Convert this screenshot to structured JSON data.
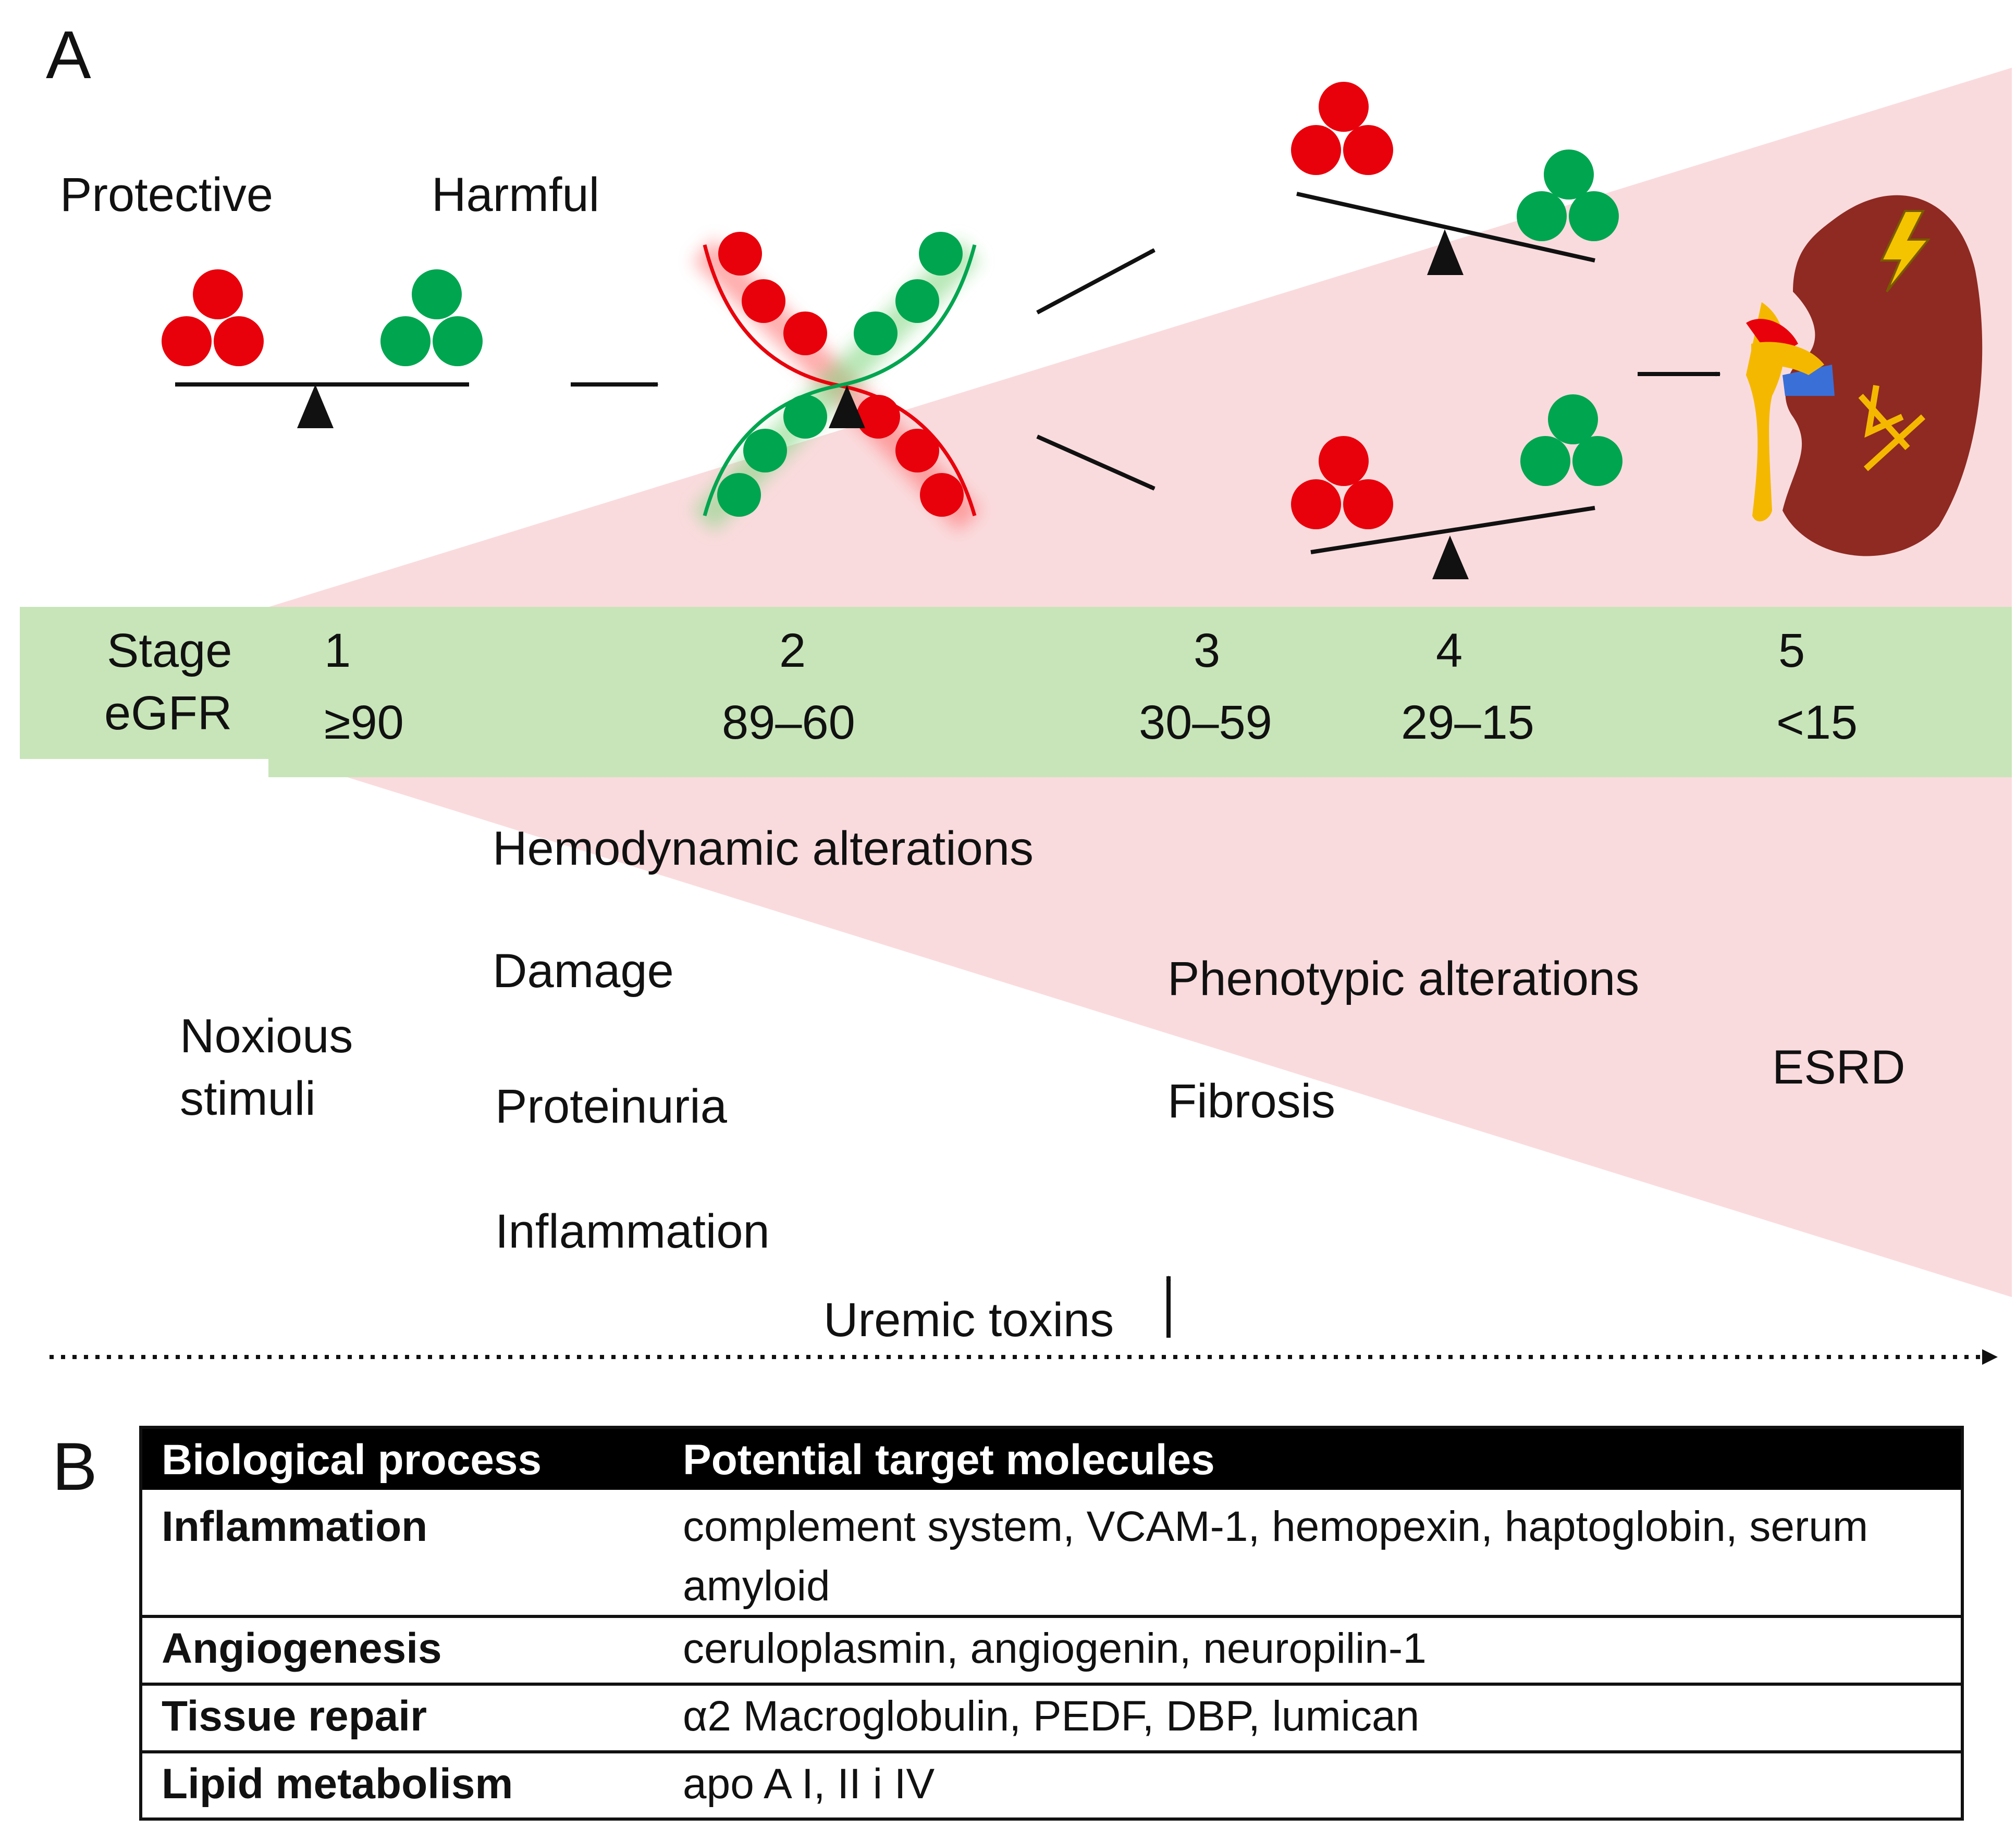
{
  "panel_labels": {
    "a": "A",
    "b": "B"
  },
  "colors": {
    "protective": "#e8000b",
    "harmful": "#00a550",
    "wedge": "#fadbdd",
    "stage_band": "#c8e5b9",
    "kidney": "#8e2a22",
    "table_header_bg": "#000000"
  },
  "balance_labels": {
    "protective": "Protective",
    "harmful": "Harmful"
  },
  "stage_band": {
    "header_stage": "Stage",
    "header_egfr": "eGFR",
    "stages": [
      {
        "stage": "1",
        "egfr": "≥90"
      },
      {
        "stage": "2",
        "egfr": "89‒60"
      },
      {
        "stage": "3",
        "egfr": "30‒59"
      },
      {
        "stage": "4",
        "egfr": "29‒15"
      },
      {
        "stage": "5",
        "egfr": "<15"
      }
    ]
  },
  "processes": {
    "noxious_line1": "Noxious",
    "noxious_line2": "stimuli",
    "early": [
      "Hemodynamic alterations",
      "Damage",
      "Proteinuria",
      "Inflammation"
    ],
    "late": [
      "Phenotypic alterations",
      "Fibrosis"
    ],
    "final": "ESRD",
    "uremic": "Uremic toxins"
  },
  "icons": [
    "balance-icon",
    "crossed-balance-icon",
    "kidney-icon",
    "lightning-icon",
    "arrow-icon",
    "up-arrow-icon"
  ],
  "table": {
    "headers": [
      "Biological process",
      "Potential target molecules"
    ],
    "rows": [
      {
        "process": "Inflammation",
        "molecules_line1": "complement system, VCAM-1, hemopexin, haptoglobin, serum",
        "molecules_line2": "amyloid"
      },
      {
        "process": "Angiogenesis",
        "molecules_line1": "ceruloplasmin, angiogenin, neuropilin-1",
        "molecules_line2": ""
      },
      {
        "process": "Tissue repair",
        "molecules_line1": "α2 Macroglobulin, PEDF, DBP, lumican",
        "molecules_line2": ""
      },
      {
        "process": "Lipid metabolism",
        "molecules_line1": "apo A I, II i IV",
        "molecules_line2": ""
      }
    ]
  }
}
